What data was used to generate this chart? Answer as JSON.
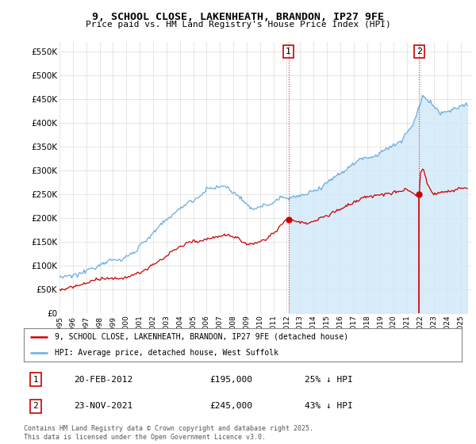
{
  "title": "9, SCHOOL CLOSE, LAKENHEATH, BRANDON, IP27 9FE",
  "subtitle": "Price paid vs. HM Land Registry's House Price Index (HPI)",
  "ylabel_ticks": [
    "£0",
    "£50K",
    "£100K",
    "£150K",
    "£200K",
    "£250K",
    "£300K",
    "£350K",
    "£400K",
    "£450K",
    "£500K",
    "£550K"
  ],
  "ytick_values": [
    0,
    50000,
    100000,
    150000,
    200000,
    250000,
    300000,
    350000,
    400000,
    450000,
    500000,
    550000
  ],
  "ylim": [
    0,
    570000
  ],
  "xlim_start": 1995.0,
  "xlim_end": 2025.8,
  "hpi_color": "#6aade0",
  "hpi_fill_color": "#d0e8f8",
  "price_color": "#cc0000",
  "background_color": "#f5f8ff",
  "chart_bg_right": "#e8f0fb",
  "sale1_date": "20-FEB-2012",
  "sale1_price": 195000,
  "sale1_pct": "25% ↓ HPI",
  "sale1_year": 2012.13,
  "sale2_date": "23-NOV-2021",
  "sale2_price": 245000,
  "sale2_pct": "43% ↓ HPI",
  "sale2_year": 2021.9,
  "legend1": "9, SCHOOL CLOSE, LAKENHEATH, BRANDON, IP27 9FE (detached house)",
  "legend2": "HPI: Average price, detached house, West Suffolk",
  "footnote": "Contains HM Land Registry data © Crown copyright and database right 2025.\nThis data is licensed under the Open Government Licence v3.0.",
  "vline_color": "#cc0000",
  "grid_color": "#cccccc",
  "white_bg_color": "#ffffff"
}
